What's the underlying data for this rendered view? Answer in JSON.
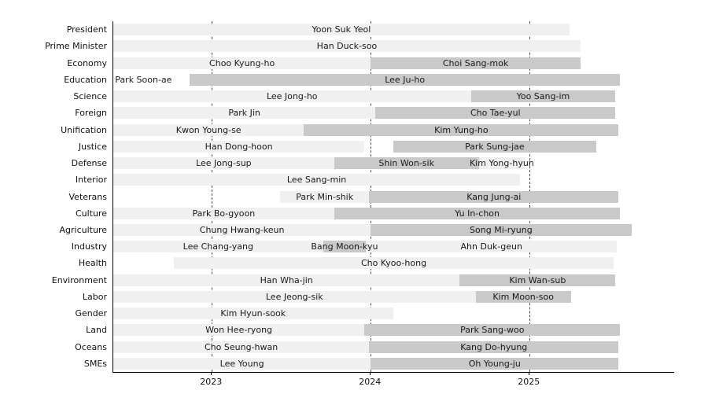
{
  "chart_data": {
    "type": "timeline_gantt",
    "title": "",
    "description_visible_text_only": "Gantt-style timeline of officeholders per portfolio",
    "x_axis": {
      "min": 2022.38,
      "max": 2025.91,
      "ticks": [
        2023,
        2024,
        2025
      ],
      "tick_labels": [
        "2023",
        "2024",
        "2025"
      ],
      "grid": "dashed vertical lines at each tick"
    },
    "colors": {
      "light": "#f0f0f0",
      "dark": "#c9c9c9",
      "none": "transparent",
      "gridline": "#4a4a4a",
      "axis": "#000000",
      "text": "#1a1a1a",
      "background": "#ffffff"
    },
    "legend": null,
    "rows": [
      {
        "label": "President",
        "segments": [
          {
            "name": "Yoon Suk Yeol",
            "start": 2022.38,
            "end": 2025.25,
            "shade": "light"
          }
        ]
      },
      {
        "label": "Prime Minister",
        "segments": [
          {
            "name": "Han Duck-soo",
            "start": 2022.38,
            "end": 2025.32,
            "shade": "light"
          }
        ]
      },
      {
        "label": "Economy",
        "segments": [
          {
            "name": "Choo Kyung-ho",
            "start": 2022.38,
            "end": 2024.0,
            "shade": "light"
          },
          {
            "name": "Choi Sang-mok",
            "start": 2024.0,
            "end": 2025.32,
            "shade": "dark"
          }
        ]
      },
      {
        "label": "Education",
        "segments": [
          {
            "name": "Park Soon-ae",
            "start": 2022.47,
            "end": 2022.67,
            "shade": "none"
          },
          {
            "name": "Lee Ju-ho",
            "start": 2022.86,
            "end": 2025.57,
            "shade": "dark"
          }
        ]
      },
      {
        "label": "Science",
        "segments": [
          {
            "name": "Lee Jong-ho",
            "start": 2022.38,
            "end": 2024.63,
            "shade": "light"
          },
          {
            "name": "Yoo Sang-im",
            "start": 2024.63,
            "end": 2025.54,
            "shade": "dark"
          }
        ]
      },
      {
        "label": "Foreign",
        "segments": [
          {
            "name": "Park Jin",
            "start": 2022.38,
            "end": 2024.03,
            "shade": "light"
          },
          {
            "name": "Cho Tae-yul",
            "start": 2024.03,
            "end": 2025.54,
            "shade": "dark"
          }
        ]
      },
      {
        "label": "Unification",
        "segments": [
          {
            "name": "Kwon Young-se",
            "start": 2022.38,
            "end": 2023.58,
            "shade": "light"
          },
          {
            "name": "Kim Yung-ho",
            "start": 2023.58,
            "end": 2025.56,
            "shade": "dark"
          }
        ]
      },
      {
        "label": "Justice",
        "segments": [
          {
            "name": "Han Dong-hoon",
            "start": 2022.38,
            "end": 2023.96,
            "shade": "light"
          },
          {
            "name": "Park Sung-jae",
            "start": 2024.14,
            "end": 2025.42,
            "shade": "dark"
          }
        ]
      },
      {
        "label": "Defense",
        "segments": [
          {
            "name": "Lee Jong-sup",
            "start": 2022.38,
            "end": 2023.77,
            "shade": "light"
          },
          {
            "name": "Shin Won-sik",
            "start": 2023.77,
            "end": 2024.68,
            "shade": "dark"
          },
          {
            "name": "Kim Yong-hyun",
            "start": 2024.68,
            "end": 2024.97,
            "shade": "light"
          }
        ]
      },
      {
        "label": "Interior",
        "segments": [
          {
            "name": "Lee Sang-min",
            "start": 2022.38,
            "end": 2024.94,
            "shade": "light"
          }
        ]
      },
      {
        "label": "Veterans",
        "segments": [
          {
            "name": "Park Min-shik",
            "start": 2023.43,
            "end": 2023.99,
            "shade": "light"
          },
          {
            "name": "Kang Jung-ai",
            "start": 2023.99,
            "end": 2025.56,
            "shade": "dark"
          }
        ]
      },
      {
        "label": "Culture",
        "segments": [
          {
            "name": "Park Bo-gyoon",
            "start": 2022.38,
            "end": 2023.77,
            "shade": "light"
          },
          {
            "name": "Yu In-chon",
            "start": 2023.77,
            "end": 2025.57,
            "shade": "dark"
          }
        ]
      },
      {
        "label": "Agriculture",
        "segments": [
          {
            "name": "Chung Hwang-keun",
            "start": 2022.38,
            "end": 2024.0,
            "shade": "light"
          },
          {
            "name": "Song Mi-ryung",
            "start": 2024.0,
            "end": 2025.64,
            "shade": "dark"
          }
        ]
      },
      {
        "label": "Industry",
        "segments": [
          {
            "name": "Lee Chang-yang",
            "start": 2022.38,
            "end": 2023.7,
            "shade": "light"
          },
          {
            "name": "Bang Moon-kyu",
            "start": 2023.7,
            "end": 2023.97,
            "shade": "dark"
          },
          {
            "name": "Ahn Duk-geun",
            "start": 2023.97,
            "end": 2025.55,
            "shade": "light"
          }
        ]
      },
      {
        "label": "Health",
        "segments": [
          {
            "name": "Cho Kyoo-hong",
            "start": 2022.76,
            "end": 2025.53,
            "shade": "light"
          }
        ]
      },
      {
        "label": "Environment",
        "segments": [
          {
            "name": "Han Wha-jin",
            "start": 2022.38,
            "end": 2024.56,
            "shade": "light"
          },
          {
            "name": "Kim Wan-sub",
            "start": 2024.56,
            "end": 2025.54,
            "shade": "dark"
          }
        ]
      },
      {
        "label": "Labor",
        "segments": [
          {
            "name": "Lee Jeong-sik",
            "start": 2022.38,
            "end": 2024.66,
            "shade": "light"
          },
          {
            "name": "Kim Moon-soo",
            "start": 2024.66,
            "end": 2025.26,
            "shade": "dark"
          }
        ]
      },
      {
        "label": "Gender",
        "segments": [
          {
            "name": "Kim Hyun-sook",
            "start": 2022.38,
            "end": 2024.14,
            "shade": "light"
          }
        ]
      },
      {
        "label": "Land",
        "segments": [
          {
            "name": "Won Hee-ryong",
            "start": 2022.38,
            "end": 2023.96,
            "shade": "light"
          },
          {
            "name": "Park Sang-woo",
            "start": 2023.96,
            "end": 2025.57,
            "shade": "dark"
          }
        ]
      },
      {
        "label": "Oceans",
        "segments": [
          {
            "name": "Cho Seung-hwan",
            "start": 2022.38,
            "end": 2023.99,
            "shade": "light"
          },
          {
            "name": "Kang Do-hyung",
            "start": 2023.99,
            "end": 2025.56,
            "shade": "dark"
          }
        ]
      },
      {
        "label": "SMEs",
        "segments": [
          {
            "name": "Lee Young",
            "start": 2022.38,
            "end": 2024.0,
            "shade": "light"
          },
          {
            "name": "Oh Young-ju",
            "start": 2024.0,
            "end": 2025.56,
            "shade": "dark"
          }
        ]
      }
    ]
  }
}
